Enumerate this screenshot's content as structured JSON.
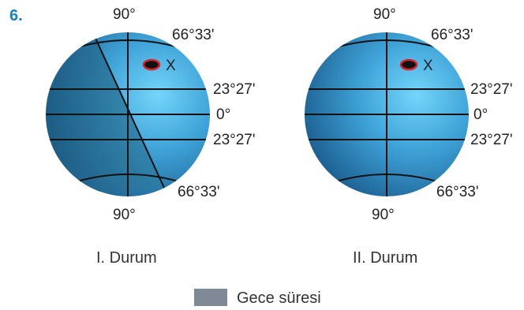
{
  "question_number": "6.",
  "diagrams": [
    {
      "caption": "I. Durum",
      "labels": {
        "north_pole": "90°",
        "arctic_circle": "66°33'",
        "tropic_north": "23°27'",
        "equator": "0°",
        "tropic_south": "23°27'",
        "antarctic_circle": "66°33'",
        "south_pole": "90°"
      },
      "point_label": "X",
      "night_shading": true
    },
    {
      "caption": "II. Durum",
      "labels": {
        "north_pole": "90°",
        "arctic_circle": "66°33'",
        "tropic_north": "23°27'",
        "equator": "0°",
        "tropic_south": "23°27'",
        "antarctic_circle": "66°33'",
        "south_pole": "90°"
      },
      "point_label": "X",
      "night_shading": false
    }
  ],
  "legend": {
    "label": "Gece süresi",
    "swatch_color": "#7f8a96"
  },
  "colors": {
    "globe_light": "#6fd0f7",
    "globe_mid": "#3a9ad0",
    "globe_dark": "#1b5f8f",
    "lines": "#111111",
    "marker_fill": "#111111",
    "marker_ring": "#d9232a"
  }
}
